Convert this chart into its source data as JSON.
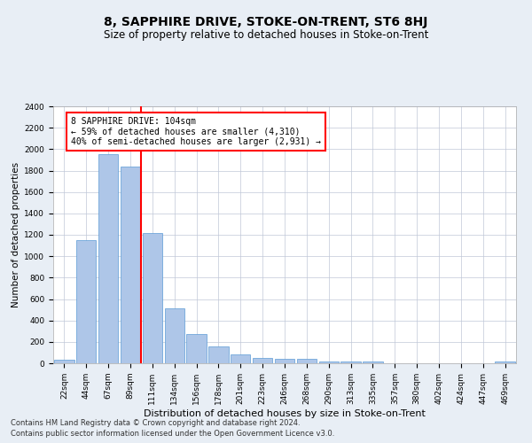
{
  "title": "8, SAPPHIRE DRIVE, STOKE-ON-TRENT, ST6 8HJ",
  "subtitle": "Size of property relative to detached houses in Stoke-on-Trent",
  "xlabel": "Distribution of detached houses by size in Stoke-on-Trent",
  "ylabel": "Number of detached properties",
  "categories": [
    "22sqm",
    "44sqm",
    "67sqm",
    "89sqm",
    "111sqm",
    "134sqm",
    "156sqm",
    "178sqm",
    "201sqm",
    "223sqm",
    "246sqm",
    "268sqm",
    "290sqm",
    "313sqm",
    "335sqm",
    "357sqm",
    "380sqm",
    "402sqm",
    "424sqm",
    "447sqm",
    "469sqm"
  ],
  "values": [
    30,
    1150,
    1950,
    1840,
    1220,
    510,
    270,
    155,
    80,
    50,
    45,
    40,
    20,
    20,
    15,
    0,
    0,
    0,
    0,
    0,
    20
  ],
  "bar_color": "#aec6e8",
  "bar_edgecolor": "#5b9bd5",
  "vline_color": "red",
  "annotation_title": "8 SAPPHIRE DRIVE: 104sqm",
  "annotation_line1": "← 59% of detached houses are smaller (4,310)",
  "annotation_line2": "40% of semi-detached houses are larger (2,931) →",
  "annotation_box_color": "red",
  "ylim": [
    0,
    2400
  ],
  "yticks": [
    0,
    200,
    400,
    600,
    800,
    1000,
    1200,
    1400,
    1600,
    1800,
    2000,
    2200,
    2400
  ],
  "footnote1": "Contains HM Land Registry data © Crown copyright and database right 2024.",
  "footnote2": "Contains public sector information licensed under the Open Government Licence v3.0.",
  "bg_color": "#e8eef5",
  "plot_bg_color": "#ffffff",
  "title_fontsize": 10,
  "subtitle_fontsize": 8.5,
  "xlabel_fontsize": 8,
  "ylabel_fontsize": 7.5,
  "tick_fontsize": 6.5,
  "annotation_fontsize": 7,
  "footnote_fontsize": 6
}
